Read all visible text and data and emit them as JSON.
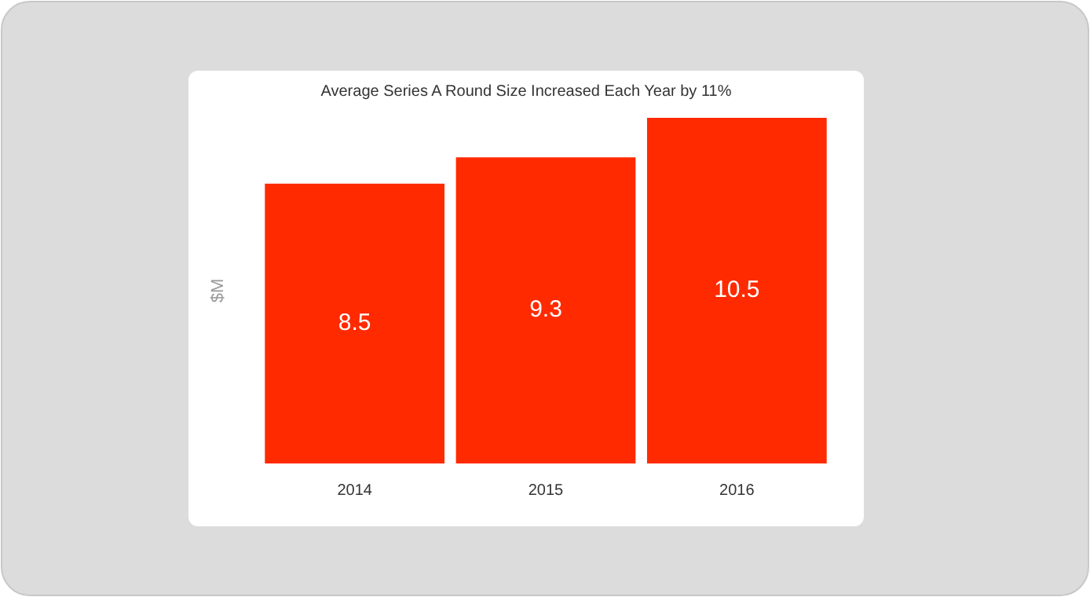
{
  "chart_data": {
    "type": "bar",
    "title": "Average Series A Round Size Increased Each Year by 11%",
    "ylabel": "$M",
    "categories": [
      "2014",
      "2015",
      "2016"
    ],
    "values": [
      8.5,
      9.3,
      10.5
    ],
    "color": "#ff2a00",
    "data_labels": true
  }
}
